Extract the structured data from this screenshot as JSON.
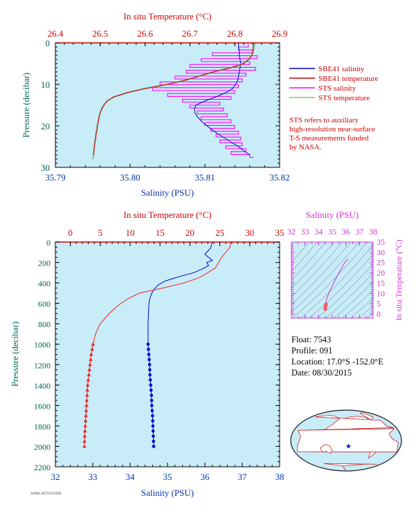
{
  "chart_data": [
    {
      "type": "line",
      "x_axis_bottom": {
        "label": "Salinity (PSU)",
        "range": [
          35.79,
          35.82
        ],
        "ticks": [
          "35.79",
          "35.80",
          "35.81",
          "35.82"
        ]
      },
      "x_axis_top": {
        "label": "In situ Temperature (°C)",
        "range": [
          26.4,
          26.9
        ],
        "ticks": [
          "26.4",
          "26.5",
          "26.6",
          "26.7",
          "26.8",
          "26.9"
        ]
      },
      "y_axis": {
        "label": "Pressure (decibar)",
        "range": [
          30,
          0
        ],
        "ticks": [
          "0",
          "10",
          "20",
          "30"
        ]
      },
      "legend": {
        "placement": "right",
        "entries": [
          "SBE41 salinity",
          "SBE41 temperature",
          "STS salinity",
          "STS temperature"
        ]
      },
      "note": [
        "STS refers to auxiliary",
        "high-resolution near-surface",
        "T-S measurements funded",
        "by NASA."
      ],
      "series": [
        {
          "name": "SBE41 salinity",
          "color": "#0000cc",
          "p": [
            0,
            1,
            2,
            3,
            4,
            5,
            6,
            7,
            8,
            9,
            10,
            11,
            12,
            13,
            14,
            15,
            16,
            17,
            18,
            19,
            20,
            21,
            22,
            23,
            24,
            25,
            26,
            27
          ],
          "sal": [
            35.8145,
            35.8145,
            35.8146,
            35.8146,
            35.8147,
            35.8148,
            35.8147,
            35.8146,
            35.8145,
            35.8144,
            35.8141,
            35.8137,
            35.8128,
            35.8115,
            35.81,
            35.8088,
            35.8086,
            35.8087,
            35.8091,
            35.8096,
            35.8103,
            35.811,
            35.8118,
            35.8127,
            35.8136,
            35.8145,
            35.8152,
            35.816
          ]
        },
        {
          "name": "SBE41 temperature",
          "color": "#cc0000",
          "p": [
            0,
            1,
            2,
            3,
            4,
            5,
            6,
            7,
            8,
            9,
            10,
            11,
            12,
            13,
            14,
            15,
            16,
            17,
            18,
            19,
            20,
            21,
            22,
            23,
            24,
            25,
            26,
            27
          ],
          "temp": [
            26.841,
            26.841,
            26.84,
            26.838,
            26.831,
            26.82,
            26.792,
            26.752,
            26.72,
            26.69,
            26.65,
            26.6,
            26.56,
            26.53,
            26.515,
            26.508,
            26.503,
            26.499,
            26.497,
            26.496,
            26.494,
            26.493,
            26.491,
            26.49,
            26.488,
            26.487,
            26.486,
            26.485
          ]
        },
        {
          "name": "STS salinity",
          "color": "#ff00ff",
          "p": [
            0.3,
            1.0,
            1.7,
            2.4,
            3.1,
            3.8,
            4.5,
            5.2,
            5.9,
            6.6,
            7.3,
            8.0,
            8.7,
            9.4,
            10.1,
            10.8,
            11.5,
            12.2,
            12.9,
            13.6,
            14.3,
            15.0,
            15.7,
            16.4,
            17.1,
            17.8,
            18.5,
            19.2,
            19.9,
            20.6,
            21.3,
            22.0,
            22.7,
            23.4,
            24.1,
            24.8,
            25.5,
            26.2,
            26.9,
            27.6
          ],
          "sal": [
            35.8158,
            35.8145,
            35.8165,
            35.811,
            35.817,
            35.8095,
            35.816,
            35.808,
            35.8168,
            35.8075,
            35.8155,
            35.806,
            35.815,
            35.804,
            35.8145,
            35.803,
            35.814,
            35.805,
            35.8135,
            35.807,
            35.812,
            35.808,
            35.8125,
            35.809,
            35.813,
            35.8095,
            35.8135,
            35.81,
            35.814,
            35.8108,
            35.8145,
            35.8115,
            35.8148,
            35.812,
            35.815,
            35.8128,
            35.8155,
            35.8135,
            35.816,
            35.8165
          ]
        },
        {
          "name": "STS temperature",
          "color": "#88bb88",
          "p": [
            0,
            1,
            2,
            3,
            4,
            5,
            6,
            7,
            8,
            9,
            10,
            11,
            12,
            13,
            14,
            15,
            16,
            17,
            18,
            19,
            20,
            21,
            22,
            23,
            24,
            25,
            26,
            27,
            28
          ],
          "temp": [
            26.845,
            26.843,
            26.841,
            26.838,
            26.83,
            26.818,
            26.79,
            26.752,
            26.722,
            26.69,
            26.65,
            26.6,
            26.56,
            26.532,
            26.516,
            26.508,
            26.503,
            26.5,
            26.497,
            26.495,
            26.493,
            26.492,
            26.49,
            26.489,
            26.488,
            26.487,
            26.486,
            26.485,
            26.484
          ]
        }
      ]
    },
    {
      "type": "line",
      "x_axis_bottom": {
        "label": "Salinity (PSU)",
        "range": [
          32,
          38
        ],
        "ticks": [
          "32",
          "33",
          "34",
          "35",
          "36",
          "37",
          "38"
        ]
      },
      "x_axis_top": {
        "label": "In situ Temperature (°C)",
        "range": [
          -2.5,
          35
        ],
        "ticks": [
          "0",
          "5",
          "10",
          "15",
          "20",
          "25",
          "30",
          "35"
        ]
      },
      "y_axis": {
        "label": "Pressure (decibar)",
        "range": [
          2200,
          0
        ],
        "ticks": [
          "0",
          "200",
          "400",
          "600",
          "800",
          "1000",
          "1200",
          "1400",
          "1600",
          "1800",
          "2000",
          "2200"
        ]
      },
      "series": [
        {
          "name": "Salinity",
          "color": "#0000cc",
          "p": [
            0,
            60,
            120,
            180,
            200,
            230,
            260,
            300,
            340,
            380,
            420,
            460,
            500,
            560,
            620,
            700,
            800,
            900,
            1000,
            1100,
            1200,
            1300,
            1400,
            1500,
            1600,
            1700,
            1800,
            1900,
            2000
          ],
          "sal": [
            36.2,
            36.15,
            36.0,
            36.2,
            36.05,
            36.1,
            35.95,
            35.7,
            35.3,
            34.95,
            34.75,
            34.65,
            34.58,
            34.52,
            34.5,
            34.49,
            34.48,
            34.48,
            34.48,
            34.5,
            34.52,
            34.53,
            34.55,
            34.57,
            34.58,
            34.6,
            34.61,
            34.62,
            34.63
          ]
        },
        {
          "name": "Temperature",
          "color": "#ee2222",
          "p": [
            0,
            50,
            100,
            150,
            200,
            250,
            300,
            350,
            400,
            450,
            500,
            560,
            620,
            700,
            800,
            900,
            1000,
            1100,
            1200,
            1300,
            1400,
            1500,
            1600,
            1700,
            1800,
            1900,
            2000
          ],
          "temp": [
            26.8,
            26.7,
            26.0,
            25.3,
            24.8,
            24.3,
            23.0,
            21.5,
            19.0,
            15.5,
            11.5,
            9.5,
            8.0,
            6.5,
            5.0,
            4.2,
            3.8,
            3.5,
            3.3,
            3.1,
            2.9,
            2.8,
            2.7,
            2.6,
            2.5,
            2.4,
            2.35
          ]
        }
      ],
      "marker_depths": [
        1000,
        1050,
        1100,
        1150,
        1200,
        1250,
        1300,
        1350,
        1400,
        1450,
        1500,
        1550,
        1600,
        1650,
        1700,
        1750,
        1800,
        1850,
        1900,
        1950,
        2000
      ]
    },
    {
      "type": "scatter",
      "x_axis_top": {
        "label": "Salinity (PSU)",
        "range": [
          32,
          38
        ],
        "ticks": [
          "32",
          "33",
          "34",
          "35",
          "36",
          "37",
          "38"
        ]
      },
      "y_axis_right": {
        "label": "In situ Temperature (°C)",
        "range": [
          -2,
          35
        ],
        "ticks": [
          "0",
          "5",
          "10",
          "15",
          "20",
          "25",
          "30",
          "35"
        ]
      },
      "color": "#cc33cc",
      "points": {
        "sal": [
          34.48,
          34.49,
          34.5,
          34.52,
          34.55,
          34.65,
          34.8,
          35.1,
          35.4,
          35.7,
          35.9,
          36.05,
          36.15
        ],
        "temp": [
          2.4,
          3.0,
          4.0,
          5.0,
          6.5,
          8.5,
          11.0,
          15.0,
          19.0,
          22.5,
          24.8,
          26.0,
          26.8
        ]
      }
    }
  ],
  "float_info": {
    "float": "Float:  7543",
    "profile": "Profile:  091",
    "location": "Location:  17.0°S  -152.0°E",
    "date": "Date:  08/30/2015"
  },
  "map": {
    "marker_lat": -17.0,
    "marker_lon": -152.0,
    "colors": {
      "ocean": "#c8ecf8",
      "land": "#ffffff",
      "outline": "#cc0000",
      "marker": "#0000cc"
    }
  },
  "footer": {
    "tiny_text": "AOML/SFTCENTER"
  },
  "colors": {
    "plot_bg": "#c8ecf8",
    "temperature_axis": "#cc0000",
    "salinity_axis": "#0033aa",
    "pressure_axis": "#006655",
    "ts_axis": "#cc33cc"
  }
}
